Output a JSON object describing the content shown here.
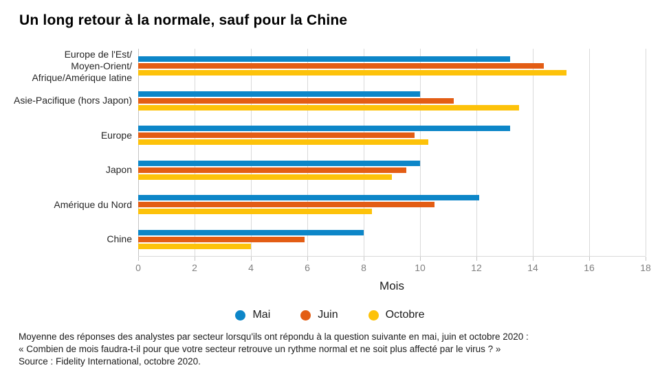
{
  "title": "Un long retour à la normale, sauf pour la Chine",
  "chart_data": {
    "type": "bar",
    "orientation": "horizontal",
    "title": "Un long retour à la normale, sauf pour la Chine",
    "categories": [
      "Europe de l'Est/Moyen-Orient/Afrique/Amérique latine",
      "Asie-Pacifique (hors Japon)",
      "Europe",
      "Japon",
      "Amérique du Nord",
      "Chine"
    ],
    "category_lines": [
      [
        "Europe de l'Est/",
        "Moyen-Orient/",
        "Afrique/Amérique latine"
      ],
      [
        "Asie-Pacifique (hors Japon)"
      ],
      [
        "Europe"
      ],
      [
        "Japon"
      ],
      [
        "Amérique du Nord"
      ],
      [
        "Chine"
      ]
    ],
    "series": [
      {
        "name": "Mai",
        "color": "#0d86c8",
        "values": [
          13.2,
          10.0,
          13.2,
          10.0,
          12.1,
          8.0
        ]
      },
      {
        "name": "Juin",
        "color": "#e35d14",
        "values": [
          14.4,
          11.2,
          9.8,
          9.5,
          10.5,
          5.9
        ]
      },
      {
        "name": "Octobre",
        "color": "#fdc20a",
        "values": [
          15.2,
          13.5,
          10.3,
          9.0,
          8.3,
          4.0
        ]
      }
    ],
    "xlabel": "Mois",
    "xlim": [
      0,
      18
    ],
    "x_ticks": [
      0,
      2,
      4,
      6,
      8,
      10,
      12,
      14,
      16,
      18
    ],
    "grid": "vertical",
    "legend_position": "bottom-center"
  },
  "footer": {
    "line1": "Moyenne des réponses des analystes par secteur lorsqu'ils ont répondu à la question suivante en mai, juin et octobre 2020 :",
    "line2": "« Combien de mois faudra-t-il pour que votre secteur retrouve un rythme normal et ne soit plus affecté par le virus ? »",
    "line3": "Source : Fidelity International, octobre 2020."
  },
  "colors": {
    "grid": "#d9d9d9",
    "axis_line": "#c4c4c4",
    "tick_text": "#7f7f7f",
    "body_text": "#1a1a1a"
  }
}
